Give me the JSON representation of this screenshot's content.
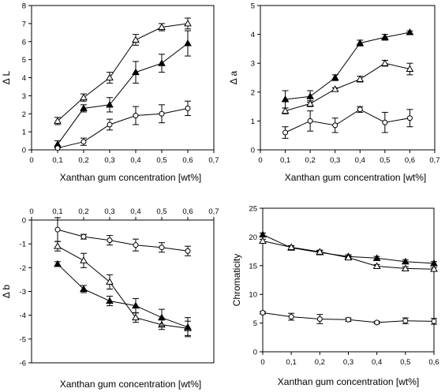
{
  "chart_data": [
    {
      "type": "line",
      "panel": "top-left",
      "xlabel": "Xanthan gum concentration [wt%]",
      "ylabel": "Δ L",
      "xlim": [
        0,
        0.7
      ],
      "ylim": [
        0,
        8
      ],
      "xticks": [
        "0",
        "0,1",
        "0,2",
        "0,3",
        "0,4",
        "0,5",
        "0,6",
        "0,7"
      ],
      "yticks": [
        "0",
        "1",
        "2",
        "3",
        "4",
        "5",
        "6",
        "7",
        "8"
      ],
      "x_axis_position": "bottom",
      "series": [
        {
          "marker": "open-triangle",
          "x": [
            0.1,
            0.2,
            0.3,
            0.4,
            0.5,
            0.6
          ],
          "y": [
            1.6,
            2.9,
            4.0,
            6.1,
            6.8,
            7.0
          ],
          "err": [
            0.2,
            0.2,
            0.3,
            0.3,
            0.2,
            0.3
          ]
        },
        {
          "marker": "filled-triangle",
          "x": [
            0.1,
            0.2,
            0.3,
            0.4,
            0.5,
            0.6
          ],
          "y": [
            0.3,
            2.3,
            2.5,
            4.3,
            4.8,
            5.9
          ],
          "err": [
            0.2,
            0.2,
            0.4,
            0.6,
            0.5,
            0.7
          ]
        },
        {
          "marker": "open-circle",
          "x": [
            0.1,
            0.2,
            0.3,
            0.4,
            0.5,
            0.6
          ],
          "y": [
            0.1,
            0.45,
            1.4,
            1.9,
            2.0,
            2.3
          ],
          "err": [
            0.1,
            0.2,
            0.3,
            0.5,
            0.5,
            0.4
          ]
        }
      ]
    },
    {
      "type": "line",
      "panel": "top-right",
      "xlabel": "Xanthan gum concentration [wt%]",
      "ylabel": "Δ a",
      "xlim": [
        0,
        0.7
      ],
      "ylim": [
        0,
        5
      ],
      "xticks": [
        "0",
        "0,1",
        "0,2",
        "0,3",
        "0,4",
        "0,5",
        "0,6",
        "0,7"
      ],
      "yticks": [
        "0",
        "1",
        "2",
        "3",
        "4",
        "5"
      ],
      "x_axis_position": "bottom",
      "series": [
        {
          "marker": "filled-triangle",
          "x": [
            0.1,
            0.2,
            0.3,
            0.4,
            0.5,
            0.6
          ],
          "y": [
            1.75,
            1.85,
            2.5,
            3.7,
            3.9,
            4.07
          ],
          "err": [
            0.3,
            0.2,
            0.1,
            0.1,
            0.1,
            0.05
          ]
        },
        {
          "marker": "open-triangle",
          "x": [
            0.1,
            0.2,
            0.3,
            0.4,
            0.5,
            0.6
          ],
          "y": [
            1.35,
            1.6,
            2.1,
            2.45,
            3.0,
            2.8
          ],
          "err": [
            0.1,
            0.1,
            0.05,
            0.1,
            0.1,
            0.2
          ]
        },
        {
          "marker": "open-circle",
          "x": [
            0.1,
            0.2,
            0.3,
            0.4,
            0.5,
            0.6
          ],
          "y": [
            0.6,
            1.0,
            0.85,
            1.4,
            0.95,
            1.1
          ],
          "err": [
            0.2,
            0.35,
            0.25,
            0.1,
            0.35,
            0.3
          ]
        }
      ]
    },
    {
      "type": "line",
      "panel": "bottom-left",
      "xlabel": "Xanthan gum concentration [wt%]",
      "ylabel": "Δ b",
      "xlim": [
        0,
        0.7
      ],
      "ylim": [
        -6,
        0
      ],
      "xticks": [
        "0",
        "0,1",
        "0,2",
        "0,3",
        "0,4",
        "0,5",
        "0,6",
        "0,7"
      ],
      "yticks": [
        "0",
        "-1",
        "-2",
        "-3",
        "-4",
        "-5",
        "-6"
      ],
      "x_axis_position": "top",
      "series": [
        {
          "marker": "open-circle",
          "x": [
            0.1,
            0.2,
            0.3,
            0.4,
            0.5,
            0.6
          ],
          "y": [
            -0.4,
            -0.7,
            -0.85,
            -1.05,
            -1.15,
            -1.3
          ],
          "err": [
            0.5,
            0.1,
            0.2,
            0.25,
            0.2,
            0.2
          ]
        },
        {
          "marker": "open-triangle",
          "x": [
            0.1,
            0.2,
            0.3,
            0.4,
            0.5,
            0.6
          ],
          "y": [
            -1.1,
            -1.7,
            -2.6,
            -4.1,
            -4.4,
            -4.55
          ],
          "err": [
            0.2,
            0.3,
            0.3,
            0.2,
            0.2,
            0.3
          ]
        },
        {
          "marker": "filled-triangle",
          "x": [
            0.1,
            0.2,
            0.3,
            0.4,
            0.5,
            0.6
          ],
          "y": [
            -1.85,
            -2.9,
            -3.4,
            -3.6,
            -4.1,
            -4.5
          ],
          "err": [
            0.1,
            0.15,
            0.2,
            0.3,
            0.35,
            0.4
          ]
        }
      ]
    },
    {
      "type": "line",
      "panel": "bottom-right",
      "xlabel": "Xanthan gum concentration [wt%]",
      "ylabel": "Chromaticity",
      "xlim": [
        0,
        0.6
      ],
      "ylim": [
        0,
        25
      ],
      "xticks": [
        "0",
        "0,1",
        "0,2",
        "0,3",
        "0,4",
        "0,5",
        "0,6"
      ],
      "yticks": [
        "0",
        "5",
        "10",
        "15",
        "20",
        "25"
      ],
      "x_axis_position": "bottom",
      "series": [
        {
          "marker": "filled-triangle",
          "x": [
            0,
            0.1,
            0.2,
            0.3,
            0.4,
            0.5,
            0.6
          ],
          "y": [
            20.4,
            18.1,
            17.3,
            16.6,
            16.3,
            15.7,
            15.4
          ],
          "err": [
            0.3,
            0.3,
            0.3,
            0.3,
            0.3,
            0.3,
            0.3
          ]
        },
        {
          "marker": "open-triangle",
          "x": [
            0,
            0.1,
            0.2,
            0.3,
            0.4,
            0.5,
            0.6
          ],
          "y": [
            19.3,
            18.2,
            17.4,
            16.4,
            14.9,
            14.5,
            14.4
          ],
          "err": [
            0.3,
            0.3,
            0.3,
            0.3,
            0.3,
            0.3,
            0.3
          ]
        },
        {
          "marker": "open-circle",
          "x": [
            0,
            0.1,
            0.2,
            0.3,
            0.4,
            0.5,
            0.6
          ],
          "y": [
            6.8,
            6.1,
            5.7,
            5.6,
            5.1,
            5.4,
            5.3
          ],
          "err": [
            0.2,
            0.6,
            0.8,
            0.3,
            0.2,
            0.5,
            0.5
          ]
        }
      ]
    }
  ]
}
